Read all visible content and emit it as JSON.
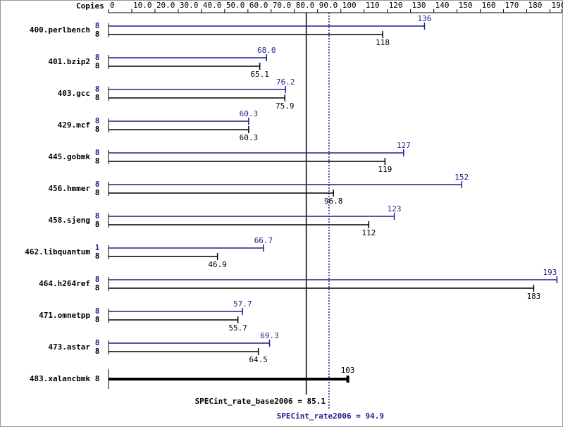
{
  "chart_data": {
    "type": "bar",
    "orientation": "horizontal",
    "copies_label": "Copies",
    "categories": [
      "400.perlbench",
      "401.bzip2",
      "403.gcc",
      "429.mcf",
      "445.gobmk",
      "456.hmmer",
      "458.sjeng",
      "462.libquantum",
      "464.h264ref",
      "471.omnetpp",
      "473.astar",
      "483.xalancbmk"
    ],
    "series": [
      {
        "color": "#1f1f8c",
        "copies": [
          8,
          8,
          8,
          8,
          8,
          8,
          8,
          1,
          8,
          8,
          8,
          null
        ],
        "values": [
          136,
          68.0,
          76.2,
          60.3,
          127,
          152,
          123,
          66.7,
          193,
          57.7,
          69.3,
          null
        ],
        "value_labels": [
          "136",
          "68.0",
          "76.2",
          "60.3",
          "127",
          "152",
          "123",
          "66.7",
          "193",
          "57.7",
          "69.3",
          null
        ]
      },
      {
        "color": "#000000",
        "copies": [
          8,
          8,
          8,
          8,
          8,
          8,
          8,
          8,
          8,
          8,
          8,
          8
        ],
        "values": [
          118,
          65.1,
          75.9,
          60.3,
          119,
          96.8,
          112,
          46.9,
          183,
          55.7,
          64.5,
          103
        ],
        "value_labels": [
          "118",
          "65.1",
          "75.9",
          "60.3",
          "119",
          "96.8",
          "112",
          "46.9",
          "183",
          "55.7",
          "64.5",
          "103"
        ]
      }
    ],
    "xlim": [
      0,
      195
    ],
    "xticks": [
      0,
      {
        "value": 10,
        "label": "10.0"
      },
      {
        "value": 20,
        "label": "20.0"
      },
      {
        "value": 30,
        "label": "30.0"
      },
      {
        "value": 40,
        "label": "40.0"
      },
      {
        "value": 50,
        "label": "50.0"
      },
      {
        "value": 60,
        "label": "60.0"
      },
      {
        "value": 70,
        "label": "70.0"
      },
      {
        "value": 80,
        "label": "80.0"
      },
      {
        "value": 90,
        "label": "90.0"
      },
      100,
      110,
      120,
      130,
      140,
      150,
      160,
      170,
      180,
      190,
      195
    ],
    "reference_lines": [
      {
        "label": "SPECint_rate_base2006 = 85.1",
        "value": 85.1,
        "color": "#000000",
        "style": "solid"
      },
      {
        "label": "SPECint_rate2006 = 94.9",
        "value": 94.9,
        "color": "#1f1f8c",
        "style": "dotted"
      }
    ]
  }
}
